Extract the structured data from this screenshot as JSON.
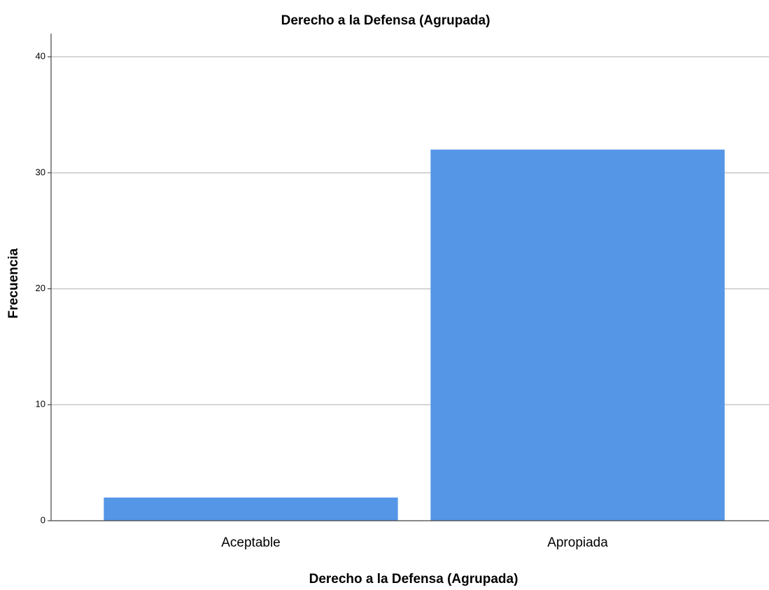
{
  "chart_data": {
    "type": "bar",
    "title": "Derecho a la Defensa (Agrupada)",
    "x_label": "Derecho a la Defensa (Agrupada)",
    "y_label": "Frecuencia",
    "categories": [
      "Aceptable",
      "Apropiada"
    ],
    "values": [
      2,
      32
    ],
    "color": "#5596e6",
    "ylim": [
      0,
      42
    ],
    "yticks": [
      0,
      10,
      20,
      30,
      40
    ],
    "grid": true
  }
}
